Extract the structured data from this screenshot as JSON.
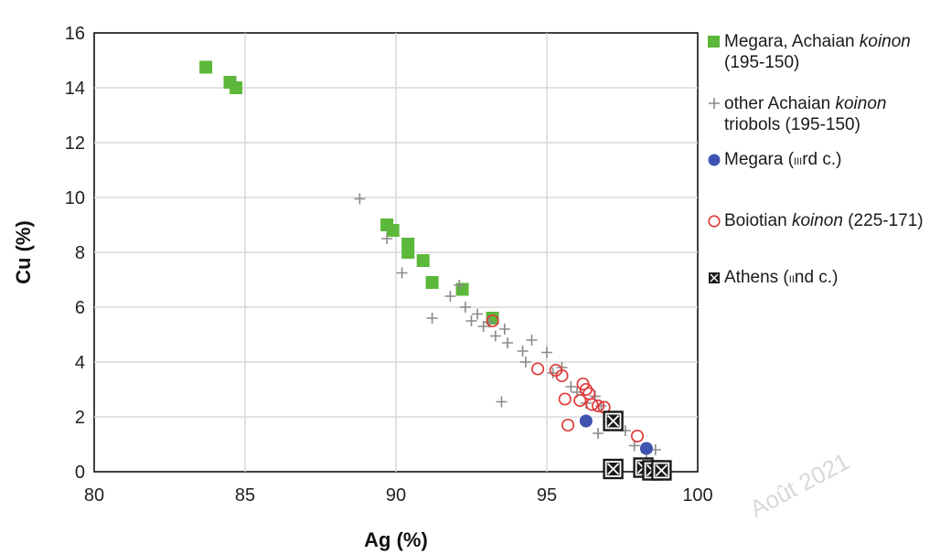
{
  "chart_data": {
    "type": "scatter",
    "xlabel": "Ag (%)",
    "ylabel": "Cu (%)",
    "xlim": [
      80,
      100
    ],
    "ylim": [
      0,
      16
    ],
    "xticks": [
      "80",
      "85",
      "90",
      "95",
      "100"
    ],
    "yticks": [
      "0",
      "2",
      "4",
      "6",
      "8",
      "10",
      "12",
      "14",
      "16"
    ],
    "grid": true,
    "legend_position": "right",
    "series": [
      {
        "name": "Megara, Achaian koinon (195-150)",
        "marker": "filled-square",
        "color": "#5cb83a",
        "points": [
          [
            83.7,
            14.75
          ],
          [
            84.5,
            14.2
          ],
          [
            84.7,
            14.0
          ],
          [
            89.7,
            9.0
          ],
          [
            89.9,
            8.8
          ],
          [
            90.4,
            8.3
          ],
          [
            90.4,
            8.0
          ],
          [
            90.9,
            7.7
          ],
          [
            91.2,
            6.9
          ],
          [
            92.2,
            6.65
          ],
          [
            93.2,
            5.6
          ]
        ]
      },
      {
        "name": "other Achaian koinon triobols (195-150)",
        "marker": "plus",
        "color": "#8a8a8a",
        "points": [
          [
            88.8,
            9.95
          ],
          [
            89.7,
            8.5
          ],
          [
            90.2,
            7.25
          ],
          [
            91.2,
            5.6
          ],
          [
            91.8,
            6.4
          ],
          [
            92.1,
            6.8
          ],
          [
            92.3,
            6.0
          ],
          [
            92.5,
            5.5
          ],
          [
            92.7,
            5.75
          ],
          [
            92.9,
            5.3
          ],
          [
            93.1,
            5.45
          ],
          [
            93.3,
            4.95
          ],
          [
            93.6,
            5.2
          ],
          [
            93.7,
            4.7
          ],
          [
            94.2,
            4.4
          ],
          [
            94.3,
            4.0
          ],
          [
            94.5,
            4.8
          ],
          [
            95.0,
            4.35
          ],
          [
            95.2,
            3.6
          ],
          [
            95.5,
            3.8
          ],
          [
            95.8,
            3.1
          ],
          [
            96.0,
            2.9
          ],
          [
            96.3,
            2.5
          ],
          [
            96.6,
            2.75
          ],
          [
            96.8,
            2.4
          ],
          [
            97.2,
            2.0
          ],
          [
            97.6,
            1.5
          ],
          [
            97.9,
            0.95
          ],
          [
            98.3,
            0.7
          ],
          [
            98.6,
            0.8
          ],
          [
            93.5,
            2.55
          ],
          [
            96.7,
            1.4
          ]
        ]
      },
      {
        "name": "Megara (iiird c.)",
        "marker": "filled-circle",
        "color": "#3f54b0",
        "points": [
          [
            96.3,
            1.85
          ],
          [
            98.3,
            0.85
          ]
        ]
      },
      {
        "name": "Boiotian koinon (225-171)",
        "marker": "open-circle",
        "color": "#e03a3a",
        "points": [
          [
            93.2,
            5.5
          ],
          [
            94.7,
            3.75
          ],
          [
            95.3,
            3.7
          ],
          [
            95.5,
            3.5
          ],
          [
            95.6,
            2.65
          ],
          [
            95.7,
            1.7
          ],
          [
            96.1,
            2.6
          ],
          [
            96.2,
            3.2
          ],
          [
            96.3,
            3.0
          ],
          [
            96.4,
            2.85
          ],
          [
            96.5,
            2.45
          ],
          [
            96.7,
            2.4
          ],
          [
            96.9,
            2.35
          ],
          [
            98.0,
            1.3
          ]
        ]
      },
      {
        "name": "Athens (iind c.)",
        "marker": "crossed-square",
        "color": "#1a1a1a",
        "points": [
          [
            97.2,
            1.85
          ],
          [
            97.2,
            0.1
          ],
          [
            98.2,
            0.15
          ],
          [
            98.5,
            0.05
          ],
          [
            98.8,
            0.05
          ]
        ]
      }
    ]
  },
  "legend": {
    "items": [
      {
        "line1": "Megara, Achaian ",
        "italic1": "koinon",
        "line2": "(195-150)"
      },
      {
        "line1": "other Achaian ",
        "italic1": "koinon",
        "line2": "triobols (195-150)"
      },
      {
        "line1": "Megara (",
        "smallcaps": "iii",
        "after": "rd c.)"
      },
      {
        "line1": "Boiotian ",
        "italic1": "koinon",
        "after": " (225-171)"
      },
      {
        "line1": "Athens (",
        "smallcaps": "ii",
        "after": "nd c.)"
      }
    ]
  },
  "watermark": "Août 2021"
}
